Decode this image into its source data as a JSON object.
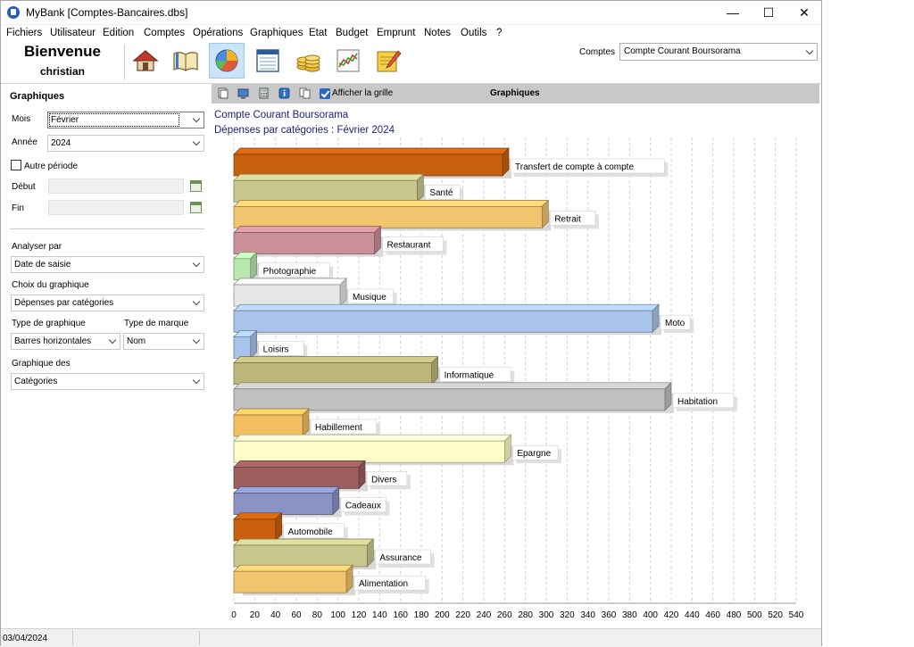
{
  "window": {
    "title": "MyBank [Comptes-Bancaires.dbs]",
    "minimize_glyph": "—",
    "maximize_glyph": "☐",
    "close_glyph": "✕"
  },
  "menu": [
    "Fichiers",
    "Utilisateur",
    "Edition",
    "Comptes",
    "Opérations",
    "Graphiques",
    "Etat",
    "Budget",
    "Emprunt",
    "Notes",
    "Outils",
    "?"
  ],
  "toolbar": {
    "welcome": "Bienvenue",
    "username": "christian",
    "icons": [
      "home-icon",
      "book-icon",
      "pie-chart-icon",
      "ledger-icon",
      "coins-icon",
      "line-chart-icon",
      "notepad-icon"
    ],
    "active_icon": "pie-chart-icon",
    "accounts_label": "Comptes",
    "accounts_value": "Compte Courant Boursorama"
  },
  "left_panel": {
    "title": "Graphiques",
    "month_label": "Mois",
    "month_value": "Février",
    "year_label": "Année",
    "year_value": "2024",
    "other_period_label": "Autre période",
    "other_period_checked": false,
    "start_label": "Début",
    "end_label": "Fin",
    "analyze_label": "Analyser par",
    "analyze_value": "Date de saisie",
    "chart_choice_label": "Choix du graphique",
    "chart_choice_value": "Dépenses par catégories",
    "chart_type_label": "Type de graphique",
    "chart_type_value": "Barres horizontales",
    "marker_type_label": "Type de marque",
    "marker_type_value": "Nom",
    "chart_of_label": "Graphique des",
    "chart_of_value": "Catégories"
  },
  "chart_toolbar": {
    "icons": [
      "copy-icon",
      "monitor-icon",
      "calculator-icon",
      "info-icon",
      "pages-icon"
    ],
    "grid_label": "Afficher la grille",
    "grid_checked": true,
    "title": "Graphiques"
  },
  "chart_data": {
    "type": "bar",
    "orientation": "horizontal",
    "title": "Compte Courant Boursorama",
    "subtitle": "Dépenses par catégories : Février 2024",
    "xlim": [
      0,
      540
    ],
    "xticks": [
      0,
      20,
      40,
      60,
      80,
      100,
      120,
      140,
      160,
      180,
      200,
      220,
      240,
      260,
      280,
      300,
      320,
      340,
      360,
      380,
      400,
      420,
      440,
      460,
      480,
      500,
      520,
      540
    ],
    "grid": true,
    "categories": [
      "Transfert de compte à compte",
      "Santé",
      "Retrait",
      "Restaurant",
      "Photographie",
      "Musique",
      "Moto",
      "Loisirs",
      "Informatique",
      "Habitation",
      "Habillement",
      "Epargne",
      "Divers",
      "Cadeaux",
      "Automobile",
      "Assurance",
      "Alimentation"
    ],
    "values": [
      258,
      176,
      296,
      135,
      16,
      102,
      402,
      16,
      190,
      414,
      66,
      260,
      120,
      95,
      40,
      128,
      108
    ],
    "colors": [
      "#c8600f",
      "#c8c88e",
      "#f2c46e",
      "#cc9099",
      "#b8e8b0",
      "#e6e6e6",
      "#a8c4ea",
      "#a8c4ea",
      "#bdb77a",
      "#c0c0c0",
      "#f2c060",
      "#fdfdc8",
      "#9c5d5d",
      "#8b93c4",
      "#c8600f",
      "#c8c88e",
      "#f2c46e"
    ]
  },
  "status": {
    "date": "03/04/2024"
  }
}
